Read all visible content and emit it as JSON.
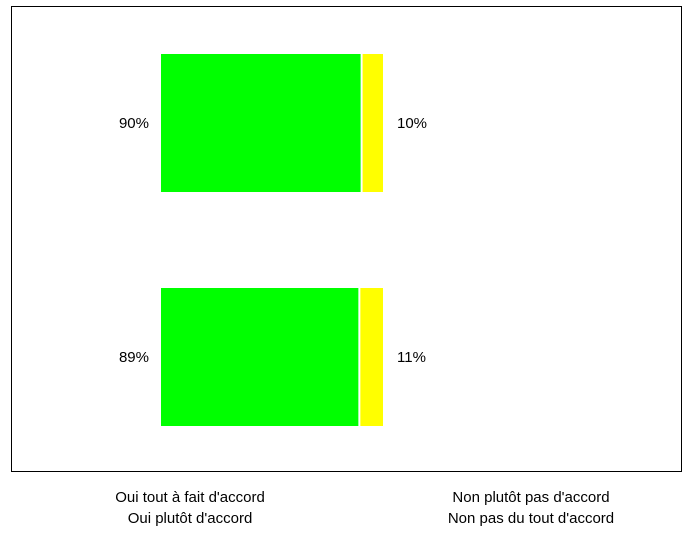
{
  "chart_data": {
    "type": "bar",
    "orientation": "horizontal",
    "stacked": true,
    "percent": true,
    "categories": [
      "",
      ""
    ],
    "series": [
      {
        "name": "Oui tout à fait d'accord / Oui plutôt d'accord",
        "values": [
          90,
          89
        ],
        "labels": [
          "90%",
          "89%"
        ],
        "color": "#00ff00"
      },
      {
        "name": "Non plutôt pas d'accord / Non pas du tout d'accord",
        "values": [
          10,
          11
        ],
        "labels": [
          "10%",
          "11%"
        ],
        "color": "#ffff00"
      }
    ],
    "xlim": [
      0,
      100
    ],
    "grid": false,
    "legend_position": "bottom"
  },
  "legend": {
    "left_line1": "Oui tout à fait d'accord",
    "left_line2": "Oui plutôt d'accord",
    "right_line1": "Non plutôt pas d'accord",
    "right_line2": "Non pas du tout d'accord"
  }
}
